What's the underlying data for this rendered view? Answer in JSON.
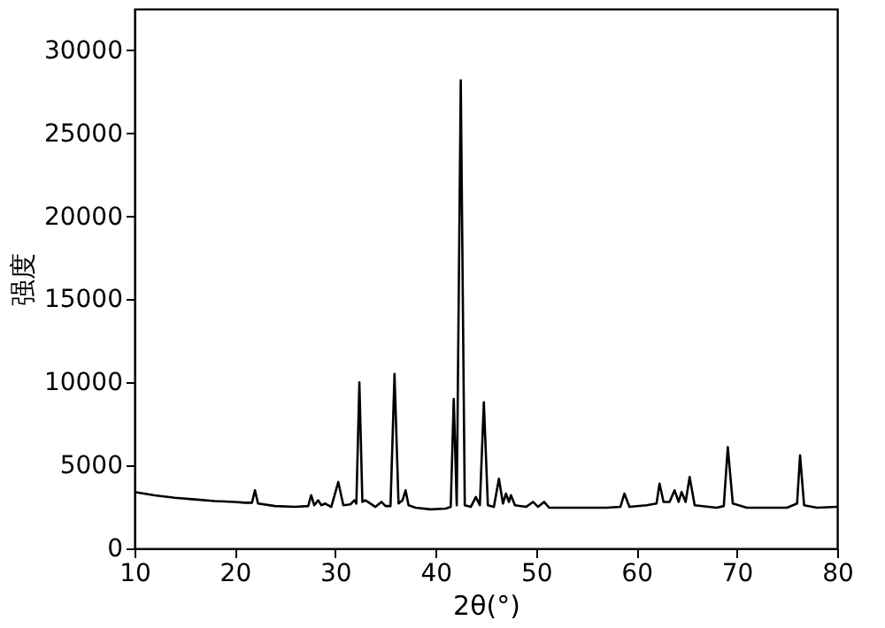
{
  "chart_data": {
    "type": "line",
    "xlabel": "2θ(°)",
    "ylabel": "强度",
    "xlim": [
      10,
      80
    ],
    "ylim": [
      0,
      32500
    ],
    "xticks": [
      10,
      20,
      30,
      40,
      50,
      60,
      70,
      80
    ],
    "yticks": [
      0,
      5000,
      10000,
      15000,
      20000,
      25000,
      30000
    ],
    "grid": false,
    "marker": "none",
    "line_style": "solid",
    "series": [
      {
        "color": "#000000",
        "x": [
          10,
          12,
          14,
          16,
          18,
          20,
          21,
          21.7,
          22,
          22.3,
          24,
          26,
          27.3,
          27.6,
          27.9,
          28.3,
          28.6,
          29,
          29.6,
          30.3,
          30.8,
          31.5,
          31.9,
          32.1,
          32.4,
          32.7,
          33,
          34,
          34.6,
          35,
          35.5,
          35.9,
          36.3,
          36.7,
          37,
          37.3,
          38,
          39.5,
          41,
          41.5,
          41.8,
          42.1,
          42.5,
          42.9,
          43.5,
          44,
          44.4,
          44.8,
          45.2,
          45.8,
          46.3,
          46.7,
          47,
          47.3,
          47.5,
          47.9,
          49,
          49.7,
          50.2,
          50.8,
          51.3,
          53,
          55.5,
          57,
          58.4,
          58.8,
          59.3,
          61,
          62,
          62.3,
          62.7,
          63.3,
          63.8,
          64.2,
          64.5,
          64.9,
          65.3,
          65.8,
          68,
          68.7,
          69.1,
          69.6,
          71,
          73,
          75,
          76,
          76.3,
          76.7,
          78,
          80
        ],
        "values": [
          3400,
          3200,
          3050,
          2950,
          2850,
          2800,
          2750,
          2750,
          3500,
          2700,
          2550,
          2500,
          2550,
          3200,
          2600,
          2900,
          2600,
          2700,
          2500,
          4000,
          2600,
          2650,
          2900,
          2700,
          10000,
          2800,
          2900,
          2500,
          2800,
          2550,
          2550,
          10500,
          2700,
          2900,
          3500,
          2600,
          2450,
          2350,
          2400,
          2500,
          9000,
          2600,
          28200,
          2600,
          2500,
          3100,
          2600,
          8800,
          2600,
          2500,
          4200,
          2700,
          3300,
          2800,
          3200,
          2600,
          2500,
          2800,
          2500,
          2800,
          2450,
          2450,
          2450,
          2450,
          2500,
          3300,
          2500,
          2600,
          2700,
          3900,
          2800,
          2800,
          3500,
          2800,
          3400,
          2800,
          4300,
          2600,
          2450,
          2550,
          6100,
          2700,
          2450,
          2450,
          2450,
          2700,
          5600,
          2600,
          2450,
          2500
        ]
      }
    ]
  }
}
